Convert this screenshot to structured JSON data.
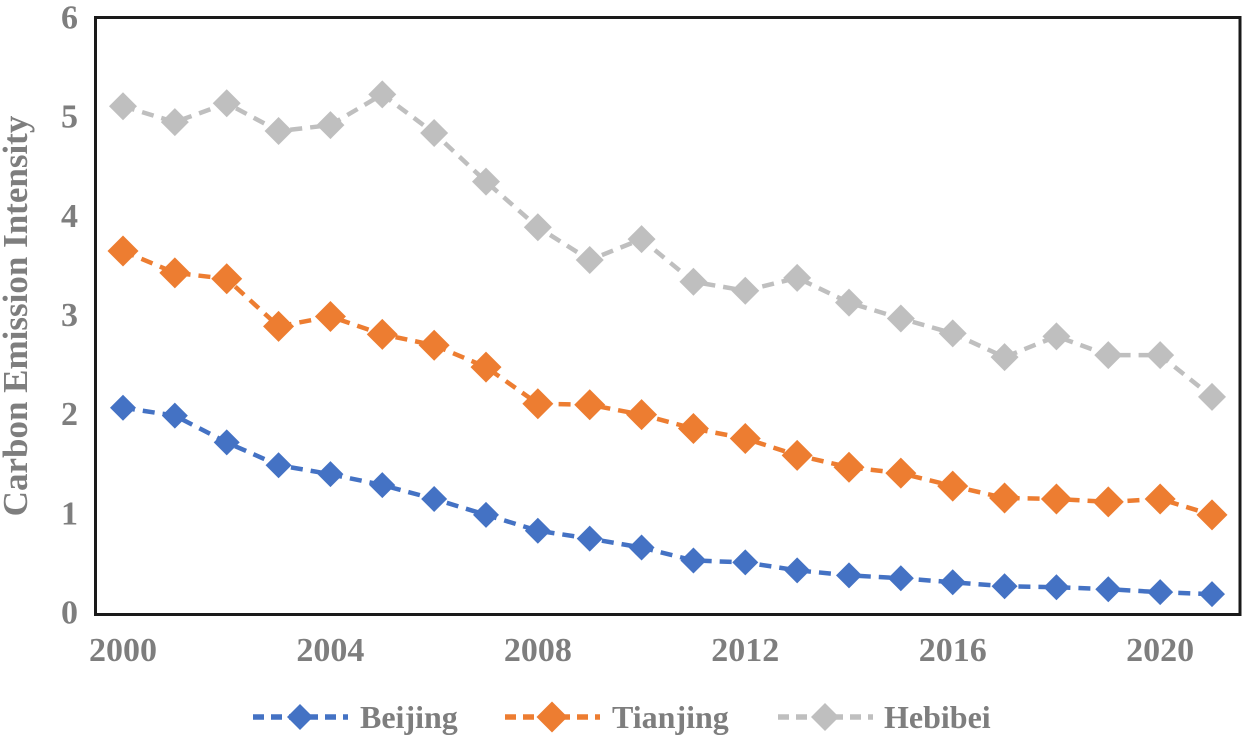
{
  "chart_data": {
    "type": "line",
    "title": "",
    "xlabel": "",
    "ylabel": "Carbon Emission Intensity",
    "ylim": [
      0,
      6
    ],
    "yticks": [
      0,
      1,
      2,
      3,
      4,
      5,
      6
    ],
    "xticks": [
      2000,
      2004,
      2008,
      2012,
      2016,
      2020
    ],
    "x": [
      2000,
      2001,
      2002,
      2003,
      2004,
      2005,
      2006,
      2007,
      2008,
      2009,
      2010,
      2011,
      2012,
      2013,
      2014,
      2015,
      2016,
      2017,
      2018,
      2019,
      2020,
      2021
    ],
    "series": [
      {
        "name": "Beijing",
        "color": "#4472C4",
        "marker": "diamond",
        "line_style": "dashed",
        "values": [
          2.07,
          1.99,
          1.72,
          1.49,
          1.4,
          1.29,
          1.15,
          0.99,
          0.83,
          0.75,
          0.66,
          0.53,
          0.51,
          0.43,
          0.38,
          0.35,
          0.31,
          0.27,
          0.26,
          0.24,
          0.21,
          0.19
        ]
      },
      {
        "name": "Tianjing",
        "color": "#ED7D31",
        "marker": "diamond",
        "line_style": "dashed",
        "values": [
          3.65,
          3.43,
          3.37,
          2.89,
          2.99,
          2.81,
          2.7,
          2.48,
          2.11,
          2.1,
          2.0,
          1.86,
          1.76,
          1.59,
          1.47,
          1.41,
          1.28,
          1.16,
          1.15,
          1.12,
          1.15,
          0.99
        ]
      },
      {
        "name": "Hebibei",
        "color": "#BFBFBF",
        "marker": "diamond",
        "line_style": "dashed",
        "values": [
          5.11,
          4.95,
          5.14,
          4.86,
          4.92,
          5.23,
          4.84,
          4.35,
          3.89,
          3.56,
          3.77,
          3.34,
          3.25,
          3.38,
          3.13,
          2.97,
          2.82,
          2.58,
          2.79,
          2.6,
          2.6,
          2.18
        ]
      }
    ],
    "grid": false,
    "legend_position": "bottom",
    "plot_border_color": "#1a1a1a",
    "text_color": "#7e7e7e"
  }
}
